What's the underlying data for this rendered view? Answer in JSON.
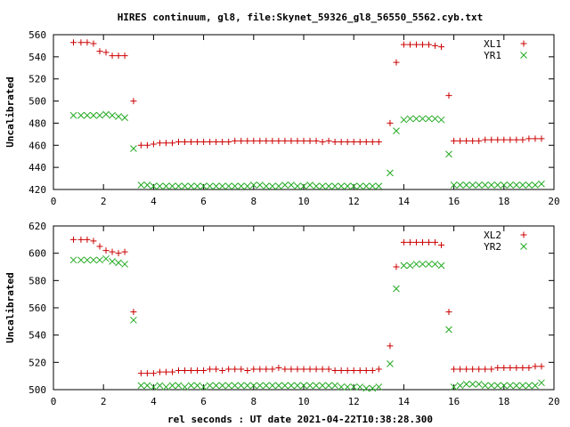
{
  "title": "HIRES continuum, gl8, file:Skynet_59326_gl8_56550_5562.cyb.txt",
  "xlabel": "rel seconds : UT date 2021-04-22T10:38:28.300",
  "colors": {
    "series1": "#cc0000",
    "series2": "#22aa22"
  },
  "chart_data": [
    {
      "type": "scatter",
      "ylabel": "Uncalibrated",
      "xlim": [
        0,
        20
      ],
      "ylim": [
        420,
        560
      ],
      "xticks": [
        0,
        2,
        4,
        6,
        8,
        10,
        12,
        14,
        16,
        18,
        20
      ],
      "yticks": [
        420,
        440,
        460,
        480,
        500,
        520,
        540,
        560
      ],
      "legend": "top-right",
      "grid": false,
      "x": [
        0.8,
        1.1,
        1.35,
        1.6,
        1.85,
        2.1,
        2.35,
        2.6,
        2.85,
        3.2,
        3.5,
        3.75,
        4.0,
        4.25,
        4.5,
        4.75,
        5.0,
        5.25,
        5.5,
        5.75,
        6.0,
        6.25,
        6.5,
        6.75,
        7.0,
        7.25,
        7.5,
        7.75,
        8.0,
        8.25,
        8.5,
        8.75,
        9.0,
        9.25,
        9.5,
        9.75,
        10.0,
        10.25,
        10.5,
        10.75,
        11.0,
        11.25,
        11.5,
        11.75,
        12.0,
        12.25,
        12.5,
        12.75,
        13.0,
        13.45,
        13.7,
        14.0,
        14.25,
        14.5,
        14.75,
        15.0,
        15.25,
        15.5,
        15.8,
        16.0,
        16.25,
        16.5,
        16.75,
        17.0,
        17.25,
        17.5,
        17.75,
        18.0,
        18.25,
        18.5,
        18.75,
        19.0,
        19.25,
        19.5
      ],
      "series": [
        {
          "name": "XL1",
          "marker": "plus",
          "values": [
            553,
            553,
            553,
            552,
            545,
            544,
            541,
            541,
            541,
            500,
            460,
            460,
            461,
            462,
            462,
            462,
            463,
            463,
            463,
            463,
            463,
            463,
            463,
            463,
            463,
            464,
            464,
            464,
            464,
            464,
            464,
            464,
            464,
            464,
            464,
            464,
            464,
            464,
            464,
            463,
            464,
            463,
            463,
            463,
            463,
            463,
            463,
            463,
            463,
            480,
            535,
            551,
            551,
            551,
            551,
            551,
            550,
            549,
            505,
            464,
            464,
            464,
            464,
            464,
            465,
            465,
            465,
            465,
            465,
            465,
            465,
            466,
            466,
            466
          ]
        },
        {
          "name": "YR1",
          "marker": "cross",
          "values": [
            487,
            487,
            487,
            487,
            487,
            488,
            487,
            486,
            485,
            457,
            424,
            424,
            423,
            423,
            423,
            423,
            423,
            423,
            423,
            423,
            423,
            423,
            423,
            423,
            423,
            423,
            423,
            423,
            424,
            424,
            423,
            423,
            423,
            424,
            424,
            423,
            423,
            424,
            423,
            423,
            423,
            423,
            423,
            423,
            423,
            423,
            423,
            423,
            423,
            435,
            473,
            483,
            484,
            484,
            484,
            484,
            484,
            483,
            452,
            424,
            424,
            424,
            424,
            424,
            424,
            424,
            424,
            424,
            424,
            424,
            424,
            424,
            424,
            425
          ]
        }
      ]
    },
    {
      "type": "scatter",
      "ylabel": "Uncalibrated",
      "xlim": [
        0,
        20
      ],
      "ylim": [
        500,
        620
      ],
      "xticks": [
        0,
        2,
        4,
        6,
        8,
        10,
        12,
        14,
        16,
        18,
        20
      ],
      "yticks": [
        500,
        520,
        540,
        560,
        580,
        600,
        620
      ],
      "legend": "top-right",
      "grid": false,
      "x": [
        0.8,
        1.1,
        1.35,
        1.6,
        1.85,
        2.1,
        2.35,
        2.6,
        2.85,
        3.2,
        3.5,
        3.75,
        4.0,
        4.25,
        4.5,
        4.75,
        5.0,
        5.25,
        5.5,
        5.75,
        6.0,
        6.25,
        6.5,
        6.75,
        7.0,
        7.25,
        7.5,
        7.75,
        8.0,
        8.25,
        8.5,
        8.75,
        9.0,
        9.25,
        9.5,
        9.75,
        10.0,
        10.25,
        10.5,
        10.75,
        11.0,
        11.25,
        11.5,
        11.75,
        12.0,
        12.25,
        12.5,
        12.75,
        13.0,
        13.45,
        13.7,
        14.0,
        14.25,
        14.5,
        14.75,
        15.0,
        15.25,
        15.5,
        15.8,
        16.0,
        16.25,
        16.5,
        16.75,
        17.0,
        17.25,
        17.5,
        17.75,
        18.0,
        18.25,
        18.5,
        18.75,
        19.0,
        19.25,
        19.5
      ],
      "series": [
        {
          "name": "XL2",
          "marker": "plus",
          "values": [
            610,
            610,
            610,
            609,
            605,
            602,
            601,
            600,
            601,
            557,
            512,
            512,
            512,
            513,
            513,
            513,
            514,
            514,
            514,
            514,
            514,
            515,
            515,
            514,
            515,
            515,
            515,
            514,
            515,
            515,
            515,
            515,
            516,
            515,
            515,
            515,
            515,
            515,
            515,
            515,
            515,
            514,
            514,
            514,
            514,
            514,
            514,
            514,
            515,
            532,
            590,
            608,
            608,
            608,
            608,
            608,
            608,
            606,
            557,
            515,
            515,
            515,
            515,
            515,
            515,
            515,
            516,
            516,
            516,
            516,
            516,
            516,
            517,
            517
          ]
        },
        {
          "name": "YR2",
          "marker": "cross",
          "values": [
            595,
            595,
            595,
            595,
            595,
            596,
            594,
            593,
            592,
            551,
            503,
            503,
            502,
            503,
            502,
            503,
            503,
            502,
            503,
            503,
            502,
            503,
            503,
            503,
            503,
            503,
            503,
            503,
            503,
            503,
            503,
            503,
            503,
            503,
            503,
            503,
            503,
            503,
            503,
            503,
            503,
            503,
            502,
            502,
            502,
            502,
            501,
            501,
            502,
            519,
            574,
            591,
            591,
            592,
            592,
            592,
            592,
            591,
            544,
            502,
            503,
            504,
            504,
            504,
            503,
            503,
            503,
            503,
            503,
            503,
            503,
            503,
            503,
            505
          ]
        }
      ]
    }
  ]
}
